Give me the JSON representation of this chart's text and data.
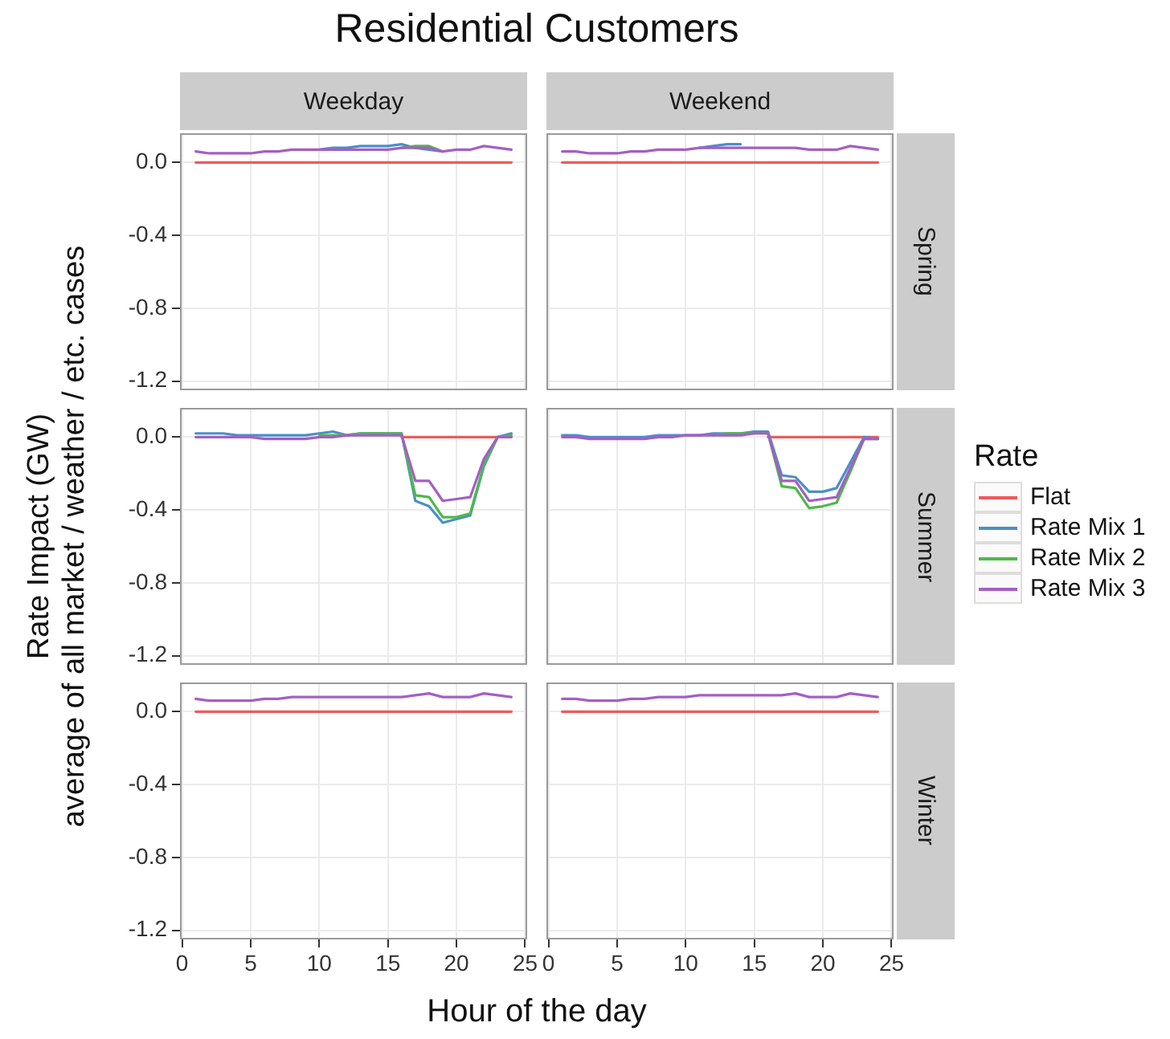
{
  "chart_data": [
    {
      "type": "line",
      "title": "Residential Customers",
      "subtitle": "Weekday",
      "ylabel": "Rate Impact (GW)\naverage of all market / weather / etc. cases",
      "legend": "right",
      "legend_title": "Rate",
      "x": [
        1,
        2,
        3,
        4,
        5,
        6,
        7,
        8,
        9,
        10,
        11,
        12,
        13,
        14,
        15,
        16,
        17,
        18,
        19,
        20,
        21,
        22,
        23,
        24
      ],
      "xlim": [
        -0.15,
        25.15
      ],
      "xticks": [
        0,
        5,
        10,
        15,
        20,
        25
      ],
      "ylim": [
        -1.25,
        0.16
      ],
      "yticks": [
        {
          "value": 0,
          "label": "0.0"
        },
        {
          "value": -0.4,
          "label": "-0.4"
        },
        {
          "value": -0.8,
          "label": "-0.8"
        },
        {
          "value": -1.2,
          "label": "-1.2"
        }
      ],
      "grid": true,
      "tick_labels": "y",
      "series": [
        {
          "name": "Flat",
          "color": "#ee5a5a",
          "values": [
            0,
            0,
            0,
            0,
            0,
            0,
            0,
            0,
            0,
            0,
            0,
            0,
            0,
            0,
            0,
            0,
            0,
            0,
            0,
            0,
            0,
            0,
            0,
            0
          ]
        },
        {
          "name": "Rate Mix 1",
          "color": "#4b8fc9",
          "values": [
            null,
            null,
            null,
            null,
            null,
            null,
            null,
            null,
            null,
            0.07,
            0.08,
            0.08,
            0.09,
            0.09,
            0.09,
            0.1,
            0.08,
            0.07,
            0.06,
            null,
            null,
            null,
            null,
            null
          ]
        },
        {
          "name": "Rate Mix 2",
          "color": "#4fb84a",
          "values": [
            null,
            null,
            null,
            null,
            null,
            null,
            null,
            null,
            null,
            null,
            null,
            null,
            null,
            null,
            null,
            0.08,
            0.09,
            0.09,
            0.06,
            null,
            null,
            null,
            null,
            null
          ]
        },
        {
          "name": "Rate Mix 3",
          "color": "#a45fc4",
          "values": [
            0.06,
            0.05,
            0.05,
            0.05,
            0.05,
            0.06,
            0.06,
            0.07,
            0.07,
            0.07,
            0.07,
            0.07,
            0.07,
            0.07,
            0.07,
            0.08,
            0.08,
            0.08,
            0.06,
            0.07,
            0.07,
            0.09,
            0.08,
            0.07
          ]
        }
      ]
    },
    {
      "type": "line",
      "subtitle": "Weekend",
      "annotations": [
        "Spring"
      ],
      "x": [
        1,
        2,
        3,
        4,
        5,
        6,
        7,
        8,
        9,
        10,
        11,
        12,
        13,
        14,
        15,
        16,
        17,
        18,
        19,
        20,
        21,
        22,
        23,
        24
      ],
      "xlim": [
        -0.15,
        25.15
      ],
      "xticks": [
        0,
        5,
        10,
        15,
        20,
        25
      ],
      "ylim": [
        -1.25,
        0.16
      ],
      "yticks": [
        0,
        -0.4,
        -0.8,
        -1.2
      ],
      "grid": true,
      "tick_labels": false,
      "series": [
        {
          "color": "#ee5a5a",
          "values": [
            0,
            0,
            0,
            0,
            0,
            0,
            0,
            0,
            0,
            0,
            0,
            0,
            0,
            0,
            0,
            0,
            0,
            0,
            0,
            0,
            0,
            0,
            0,
            0
          ]
        },
        {
          "color": "#4b8fc9",
          "values": [
            null,
            null,
            null,
            null,
            null,
            null,
            null,
            null,
            null,
            null,
            0.08,
            0.09,
            0.1,
            0.1,
            null,
            null,
            null,
            null,
            null,
            null,
            null,
            null,
            null,
            null
          ]
        },
        {
          "color": "#a45fc4",
          "values": [
            0.06,
            0.06,
            0.05,
            0.05,
            0.05,
            0.06,
            0.06,
            0.07,
            0.07,
            0.07,
            0.08,
            0.08,
            0.08,
            0.08,
            0.08,
            0.08,
            0.08,
            0.08,
            0.07,
            0.07,
            0.07,
            0.09,
            0.08,
            0.07
          ]
        }
      ]
    },
    {
      "type": "line",
      "x": [
        1,
        2,
        3,
        4,
        5,
        6,
        7,
        8,
        9,
        10,
        11,
        12,
        13,
        14,
        15,
        16,
        17,
        18,
        19,
        20,
        21,
        22,
        23,
        24
      ],
      "xlim": [
        -0.15,
        25.15
      ],
      "xticks": [
        0,
        5,
        10,
        15,
        20,
        25
      ],
      "ylim": [
        -1.25,
        0.16
      ],
      "yticks": [
        {
          "value": 0,
          "label": "0.0"
        },
        {
          "value": -0.4,
          "label": "-0.4"
        },
        {
          "value": -0.8,
          "label": "-0.8"
        },
        {
          "value": -1.2,
          "label": "-1.2"
        }
      ],
      "grid": true,
      "tick_labels": "y",
      "series": [
        {
          "color": "#ee5a5a",
          "values": [
            null,
            null,
            null,
            null,
            null,
            null,
            null,
            null,
            null,
            null,
            null,
            null,
            null,
            null,
            null,
            0,
            0,
            0,
            0,
            0,
            0,
            0,
            0,
            0
          ]
        },
        {
          "color": "#4b8fc9",
          "values": [
            0.02,
            0.02,
            0.02,
            0.01,
            0.01,
            0.01,
            0.01,
            0.01,
            0.01,
            0.02,
            0.03,
            0.01,
            0.02,
            0.02,
            0.02,
            0.02,
            -0.35,
            -0.38,
            -0.47,
            -0.45,
            -0.43,
            -0.16,
            0,
            0.02
          ]
        },
        {
          "color": "#4fb84a",
          "values": [
            null,
            null,
            null,
            null,
            null,
            null,
            null,
            null,
            null,
            0.01,
            0.01,
            0.01,
            0.02,
            0.02,
            0.02,
            0.02,
            -0.32,
            -0.33,
            -0.44,
            -0.44,
            -0.42,
            -0.15,
            0,
            0.01
          ]
        },
        {
          "color": "#a45fc4",
          "values": [
            0,
            0,
            0,
            0,
            0,
            -0.01,
            -0.01,
            -0.01,
            -0.01,
            0,
            0,
            0.01,
            0.01,
            0.01,
            0.01,
            0.01,
            -0.24,
            -0.24,
            -0.35,
            -0.34,
            -0.33,
            -0.12,
            0,
            0
          ]
        }
      ]
    },
    {
      "type": "line",
      "annotations": [
        "Summer"
      ],
      "x": [
        1,
        2,
        3,
        4,
        5,
        6,
        7,
        8,
        9,
        10,
        11,
        12,
        13,
        14,
        15,
        16,
        17,
        18,
        19,
        20,
        21,
        22,
        23,
        24
      ],
      "xlim": [
        -0.15,
        25.15
      ],
      "xticks": [
        0,
        5,
        10,
        15,
        20,
        25
      ],
      "ylim": [
        -1.25,
        0.16
      ],
      "yticks": [
        0,
        -0.4,
        -0.8,
        -1.2
      ],
      "grid": true,
      "tick_labels": false,
      "series": [
        {
          "color": "#ee5a5a",
          "values": [
            null,
            null,
            null,
            null,
            null,
            null,
            null,
            null,
            null,
            null,
            null,
            null,
            null,
            null,
            null,
            0,
            0,
            0,
            0,
            0,
            0,
            0,
            0,
            0
          ]
        },
        {
          "color": "#4b8fc9",
          "values": [
            0.01,
            0.01,
            0,
            0,
            0,
            0,
            0,
            0.01,
            0.01,
            0.01,
            0.01,
            0.02,
            0.02,
            0.02,
            0.03,
            0.03,
            -0.21,
            -0.22,
            -0.3,
            -0.3,
            -0.28,
            -0.14,
            0,
            -0.01
          ]
        },
        {
          "color": "#4fb84a",
          "values": [
            null,
            null,
            null,
            null,
            null,
            null,
            null,
            null,
            null,
            null,
            null,
            0.01,
            0.02,
            0.02,
            0.02,
            0.02,
            -0.27,
            -0.28,
            -0.39,
            -0.38,
            -0.36,
            -0.19,
            -0.01,
            -0.01
          ]
        },
        {
          "color": "#a45fc4",
          "values": [
            0,
            0,
            -0.01,
            -0.01,
            -0.01,
            -0.01,
            -0.01,
            0,
            0,
            0.01,
            0.01,
            0.01,
            0.01,
            0.01,
            0.02,
            0.02,
            -0.24,
            -0.24,
            -0.35,
            -0.34,
            -0.33,
            -0.17,
            -0.01,
            -0.01
          ]
        }
      ]
    },
    {
      "type": "line",
      "xlabel": "Hour of the day",
      "x": [
        1,
        2,
        3,
        4,
        5,
        6,
        7,
        8,
        9,
        10,
        11,
        12,
        13,
        14,
        15,
        16,
        17,
        18,
        19,
        20,
        21,
        22,
        23,
        24
      ],
      "xlim": [
        -0.15,
        25.15
      ],
      "xticks": [
        0,
        5,
        10,
        15,
        20,
        25
      ],
      "ylim": [
        -1.25,
        0.16
      ],
      "yticks": [
        {
          "value": 0,
          "label": "0.0"
        },
        {
          "value": -0.4,
          "label": "-0.4"
        },
        {
          "value": -0.8,
          "label": "-0.8"
        },
        {
          "value": -1.2,
          "label": "-1.2"
        }
      ],
      "grid": true,
      "series": [
        {
          "color": "#ee5a5a",
          "values": [
            0,
            0,
            0,
            0,
            0,
            0,
            0,
            0,
            0,
            0,
            0,
            0,
            0,
            0,
            0,
            0,
            0,
            0,
            0,
            0,
            0,
            0,
            0,
            0
          ]
        },
        {
          "color": "#a45fc4",
          "values": [
            0.07,
            0.06,
            0.06,
            0.06,
            0.06,
            0.07,
            0.07,
            0.08,
            0.08,
            0.08,
            0.08,
            0.08,
            0.08,
            0.08,
            0.08,
            0.08,
            0.09,
            0.1,
            0.08,
            0.08,
            0.08,
            0.1,
            0.09,
            0.08
          ]
        }
      ]
    },
    {
      "type": "line",
      "annotations": [
        "Winter"
      ],
      "x": [
        1,
        2,
        3,
        4,
        5,
        6,
        7,
        8,
        9,
        10,
        11,
        12,
        13,
        14,
        15,
        16,
        17,
        18,
        19,
        20,
        21,
        22,
        23,
        24
      ],
      "xlim": [
        -0.15,
        25.15
      ],
      "xticks": [
        0,
        5,
        10,
        15,
        20,
        25
      ],
      "ylim": [
        -1.25,
        0.16
      ],
      "yticks": [
        0,
        -0.4,
        -0.8,
        -1.2
      ],
      "grid": true,
      "tick_labels": "x",
      "series": [
        {
          "color": "#ee5a5a",
          "values": [
            0,
            0,
            0,
            0,
            0,
            0,
            0,
            0,
            0,
            0,
            0,
            0,
            0,
            0,
            0,
            0,
            0,
            0,
            0,
            0,
            0,
            0,
            0,
            0
          ]
        },
        {
          "color": "#a45fc4",
          "values": [
            0.07,
            0.07,
            0.06,
            0.06,
            0.06,
            0.07,
            0.07,
            0.08,
            0.08,
            0.08,
            0.09,
            0.09,
            0.09,
            0.09,
            0.09,
            0.09,
            0.09,
            0.1,
            0.08,
            0.08,
            0.08,
            0.1,
            0.09,
            0.08
          ]
        }
      ]
    }
  ]
}
